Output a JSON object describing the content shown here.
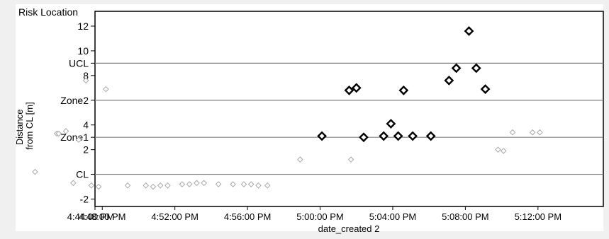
{
  "chart_data": {
    "type": "scatter",
    "title": "Risk Location",
    "xlabel": "date_created 2",
    "ylabel_lines": [
      "Distance",
      "from CL [m]"
    ],
    "ylim": [
      -2.6,
      13.2
    ],
    "xlim_minutes": [
      -12.4,
      15.6
    ],
    "y_ticks": [
      {
        "label": "12",
        "value": 12
      },
      {
        "label": "10",
        "value": 10
      },
      {
        "label": "UCL",
        "value": 9
      },
      {
        "label": "8",
        "value": 8
      },
      {
        "label": "Zone2",
        "value": 6
      },
      {
        "label": "4",
        "value": 4
      },
      {
        "label": "Zone1",
        "value": 3
      },
      {
        "label": "2",
        "value": 2
      },
      {
        "label": "CL",
        "value": 0
      },
      {
        "label": "-2",
        "value": -2
      }
    ],
    "reference_lines": [
      {
        "label": "UCL",
        "value": 9
      },
      {
        "label": "Zone2",
        "value": 6
      },
      {
        "label": "Zone1",
        "value": 3
      },
      {
        "label": "CL",
        "value": 0
      }
    ],
    "x_ticks": [
      {
        "label": "4:44:00 PM",
        "minutes": -16
      },
      {
        "label": "4:48:00 PM",
        "minutes": -12
      },
      {
        "label": "4:52:00 PM",
        "minutes": -8
      },
      {
        "label": "4:56:00 PM",
        "minutes": -4
      },
      {
        "label": "5:00:00 PM",
        "minutes": 0
      },
      {
        "label": "5:04:00 PM",
        "minutes": 4
      },
      {
        "label": "5:08:00 PM",
        "minutes": 8
      },
      {
        "label": "5:12:00 PM",
        "minutes": 12
      }
    ],
    "series": [
      {
        "style": "normal",
        "color": "#a8a8a8",
        "points": [
          [
            -15.7,
            0.2
          ],
          [
            -14.5,
            3.3
          ],
          [
            -14.4,
            3.3
          ],
          [
            -14.0,
            3.5
          ],
          [
            -13.6,
            -0.7
          ],
          [
            -13.3,
            2.8
          ],
          [
            -12.9,
            7.6
          ],
          [
            -12.6,
            -0.9
          ],
          [
            -12.2,
            -1.0
          ],
          [
            -11.8,
            6.9
          ],
          [
            -10.6,
            -0.9
          ],
          [
            -9.6,
            -0.9
          ],
          [
            -9.2,
            -1.0
          ],
          [
            -8.8,
            -0.9
          ],
          [
            -8.4,
            -0.9
          ],
          [
            -7.6,
            -0.8
          ],
          [
            -7.2,
            -0.8
          ],
          [
            -6.8,
            -0.7
          ],
          [
            -6.4,
            -0.7
          ],
          [
            -5.6,
            -0.8
          ],
          [
            -4.8,
            -0.8
          ],
          [
            -4.2,
            -0.8
          ],
          [
            -3.8,
            -0.8
          ],
          [
            -3.4,
            -0.9
          ],
          [
            -2.9,
            -0.9
          ],
          [
            -1.1,
            1.2
          ],
          [
            1.7,
            1.2
          ],
          [
            9.8,
            2.0
          ],
          [
            10.1,
            1.9
          ],
          [
            10.6,
            3.4
          ],
          [
            11.7,
            3.4
          ],
          [
            12.1,
            3.4
          ]
        ]
      },
      {
        "style": "flagged",
        "color": "#000000",
        "points": [
          [
            0.1,
            3.1
          ],
          [
            1.6,
            6.8
          ],
          [
            2.0,
            7.0
          ],
          [
            2.4,
            3.0
          ],
          [
            3.5,
            3.1
          ],
          [
            3.9,
            4.1
          ],
          [
            4.3,
            3.1
          ],
          [
            4.6,
            6.8
          ],
          [
            5.1,
            3.1
          ],
          [
            6.1,
            3.1
          ],
          [
            7.1,
            7.6
          ],
          [
            7.5,
            8.6
          ],
          [
            8.2,
            11.6
          ],
          [
            8.6,
            8.6
          ],
          [
            9.1,
            6.9
          ]
        ]
      }
    ]
  }
}
